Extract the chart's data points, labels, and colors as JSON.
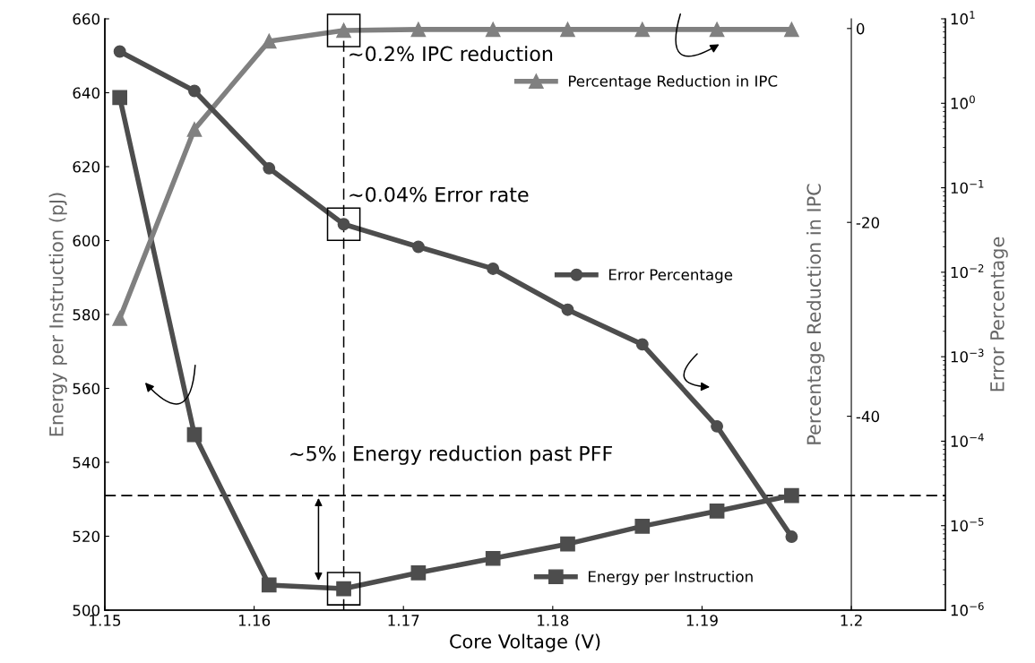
{
  "chart_data": {
    "type": "line",
    "xlabel": "Core Voltage (V)",
    "ylabel": "Energy per Instruction (pJ)",
    "y2label": "Percentage Reduction in IPC",
    "y3label": "Error Percentage",
    "x": [
      1.151,
      1.156,
      1.161,
      1.166,
      1.171,
      1.176,
      1.181,
      1.186,
      1.191,
      1.196
    ],
    "series": [
      {
        "name": "Percentage Reduction in IPC",
        "color": "#808080",
        "axis": "y2",
        "marker": "triangle",
        "values": [
          -29.9,
          -10.4,
          -1.3,
          -0.2,
          -0.1,
          -0.1,
          -0.1,
          -0.1,
          -0.1,
          -0.1
        ]
      },
      {
        "name": "Error Percentage",
        "color": "#4d4d4d",
        "axis": "y3",
        "marker": "circle",
        "values": [
          4.1,
          1.4,
          0.17,
          0.037,
          0.02,
          0.011,
          0.0036,
          0.0014,
          0.00015,
          7.4e-06
        ]
      },
      {
        "name": "Energy per Instruction",
        "color": "#4d4d4d",
        "axis": "y",
        "marker": "square",
        "values": [
          638.7,
          547.5,
          506.8,
          505.8,
          510.1,
          514.0,
          517.9,
          522.7,
          526.8,
          531.0
        ]
      }
    ],
    "xlim": [
      1.15,
      1.2063
    ],
    "xticks": [
      1.15,
      1.16,
      1.17,
      1.18,
      1.19,
      {
        "value": 1.2,
        "label": "1.2"
      }
    ],
    "ylim": [
      500,
      660
    ],
    "yticks": [
      500,
      520,
      540,
      560,
      580,
      600,
      620,
      640,
      660
    ],
    "y2lim": [
      -60,
      1
    ],
    "y2ticks": [
      {
        "value": -40,
        "label": "-40"
      },
      {
        "value": -20,
        "label": "-20"
      },
      0
    ],
    "y3lim": [
      1e-06,
      10
    ],
    "y3ticks": [
      {
        "value": 1e-06,
        "label": "10$^{−6}$"
      },
      {
        "value": 1e-05,
        "label": "10$^{−5}$"
      },
      {
        "value": 0.0001,
        "label": "10$^{−4}$"
      },
      {
        "value": 0.001,
        "label": "10$^{−3}$"
      },
      {
        "value": 0.01,
        "label": "10$^{−2}$"
      },
      {
        "value": 0.1,
        "label": "10$^{−1}$"
      },
      {
        "value": 1,
        "label": "10$^{0}$"
      },
      {
        "value": 10,
        "label": "10$^{1}$"
      }
    ],
    "log": "y3",
    "ref_lines": [
      {
        "axis": "x",
        "value": 1.166,
        "color": "#000000",
        "line_style": "dashed"
      },
      {
        "axis": "y",
        "value": 531,
        "color": "#000000",
        "line_style": "dashed"
      }
    ],
    "annotations": [
      "~0.2% IPC reduction",
      "~0.04% Error rate",
      "~5%",
      "Energy reduction past PFF"
    ],
    "legend": "center right",
    "grid": false,
    "line_style": "solid"
  }
}
